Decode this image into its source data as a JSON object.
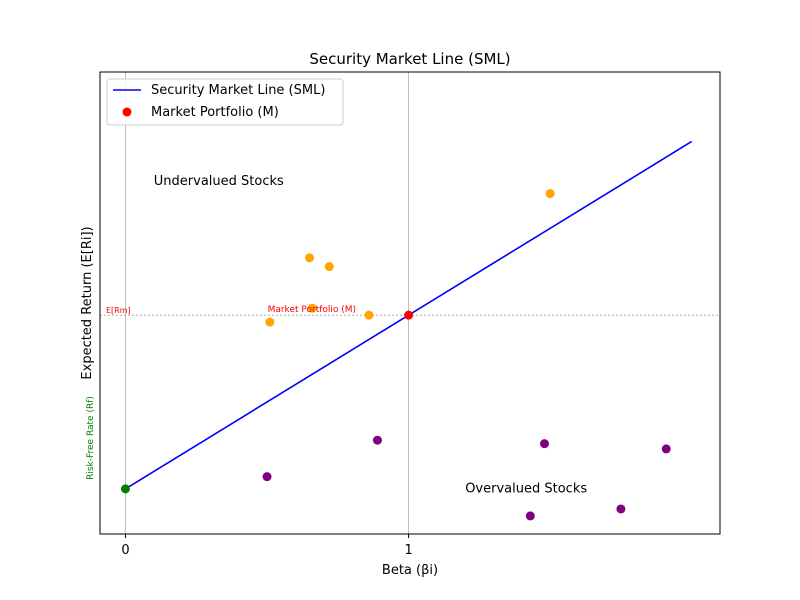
{
  "chart_data": {
    "type": "scatter",
    "title": "Security Market Line (SML)",
    "xlabel": "Beta (βi)",
    "ylabel": "Expected Return (E[Ri])",
    "xlim": [
      -0.09,
      2.1
    ],
    "ylim": [
      -0.13,
      1.2
    ],
    "x_ticks": [
      {
        "value": 0,
        "label": "0"
      },
      {
        "value": 1,
        "label": "1"
      }
    ],
    "grid": "x-only",
    "legend_position": "top-left",
    "sml": {
      "name": "Security Market Line (SML)",
      "x": [
        0,
        2
      ],
      "y": [
        0,
        1.0
      ],
      "color": "#0000ff"
    },
    "market_portfolio": {
      "name": "Market Portfolio (M)",
      "x": 1,
      "y": 0.5,
      "color": "#ff0000",
      "annotation": "Market Portfolio (M)"
    },
    "risk_free": {
      "x": 0,
      "y": 0,
      "color": "#008000",
      "label": "Risk-Free Rate (Rf)"
    },
    "market_return_line": {
      "y": 0.5,
      "label": "E[Rm]",
      "color": "#ff0000"
    },
    "undervalued": {
      "color": "#ffa500",
      "label": "Undervalued Stocks",
      "label_x": 0.1,
      "label_y": 0.875,
      "points": [
        {
          "x": 0.51,
          "y": 0.48
        },
        {
          "x": 0.66,
          "y": 0.52
        },
        {
          "x": 0.65,
          "y": 0.665
        },
        {
          "x": 0.72,
          "y": 0.64
        },
        {
          "x": 0.86,
          "y": 0.5
        },
        {
          "x": 1.5,
          "y": 0.85
        }
      ]
    },
    "overvalued": {
      "color": "#800080",
      "label": "Overvalued Stocks",
      "label_x": 1.2,
      "label_y": -0.01,
      "points": [
        {
          "x": 0.5,
          "y": 0.035
        },
        {
          "x": 0.89,
          "y": 0.14
        },
        {
          "x": 1.48,
          "y": 0.13
        },
        {
          "x": 1.91,
          "y": 0.115
        },
        {
          "x": 1.43,
          "y": -0.078
        },
        {
          "x": 1.75,
          "y": -0.058
        }
      ]
    }
  }
}
